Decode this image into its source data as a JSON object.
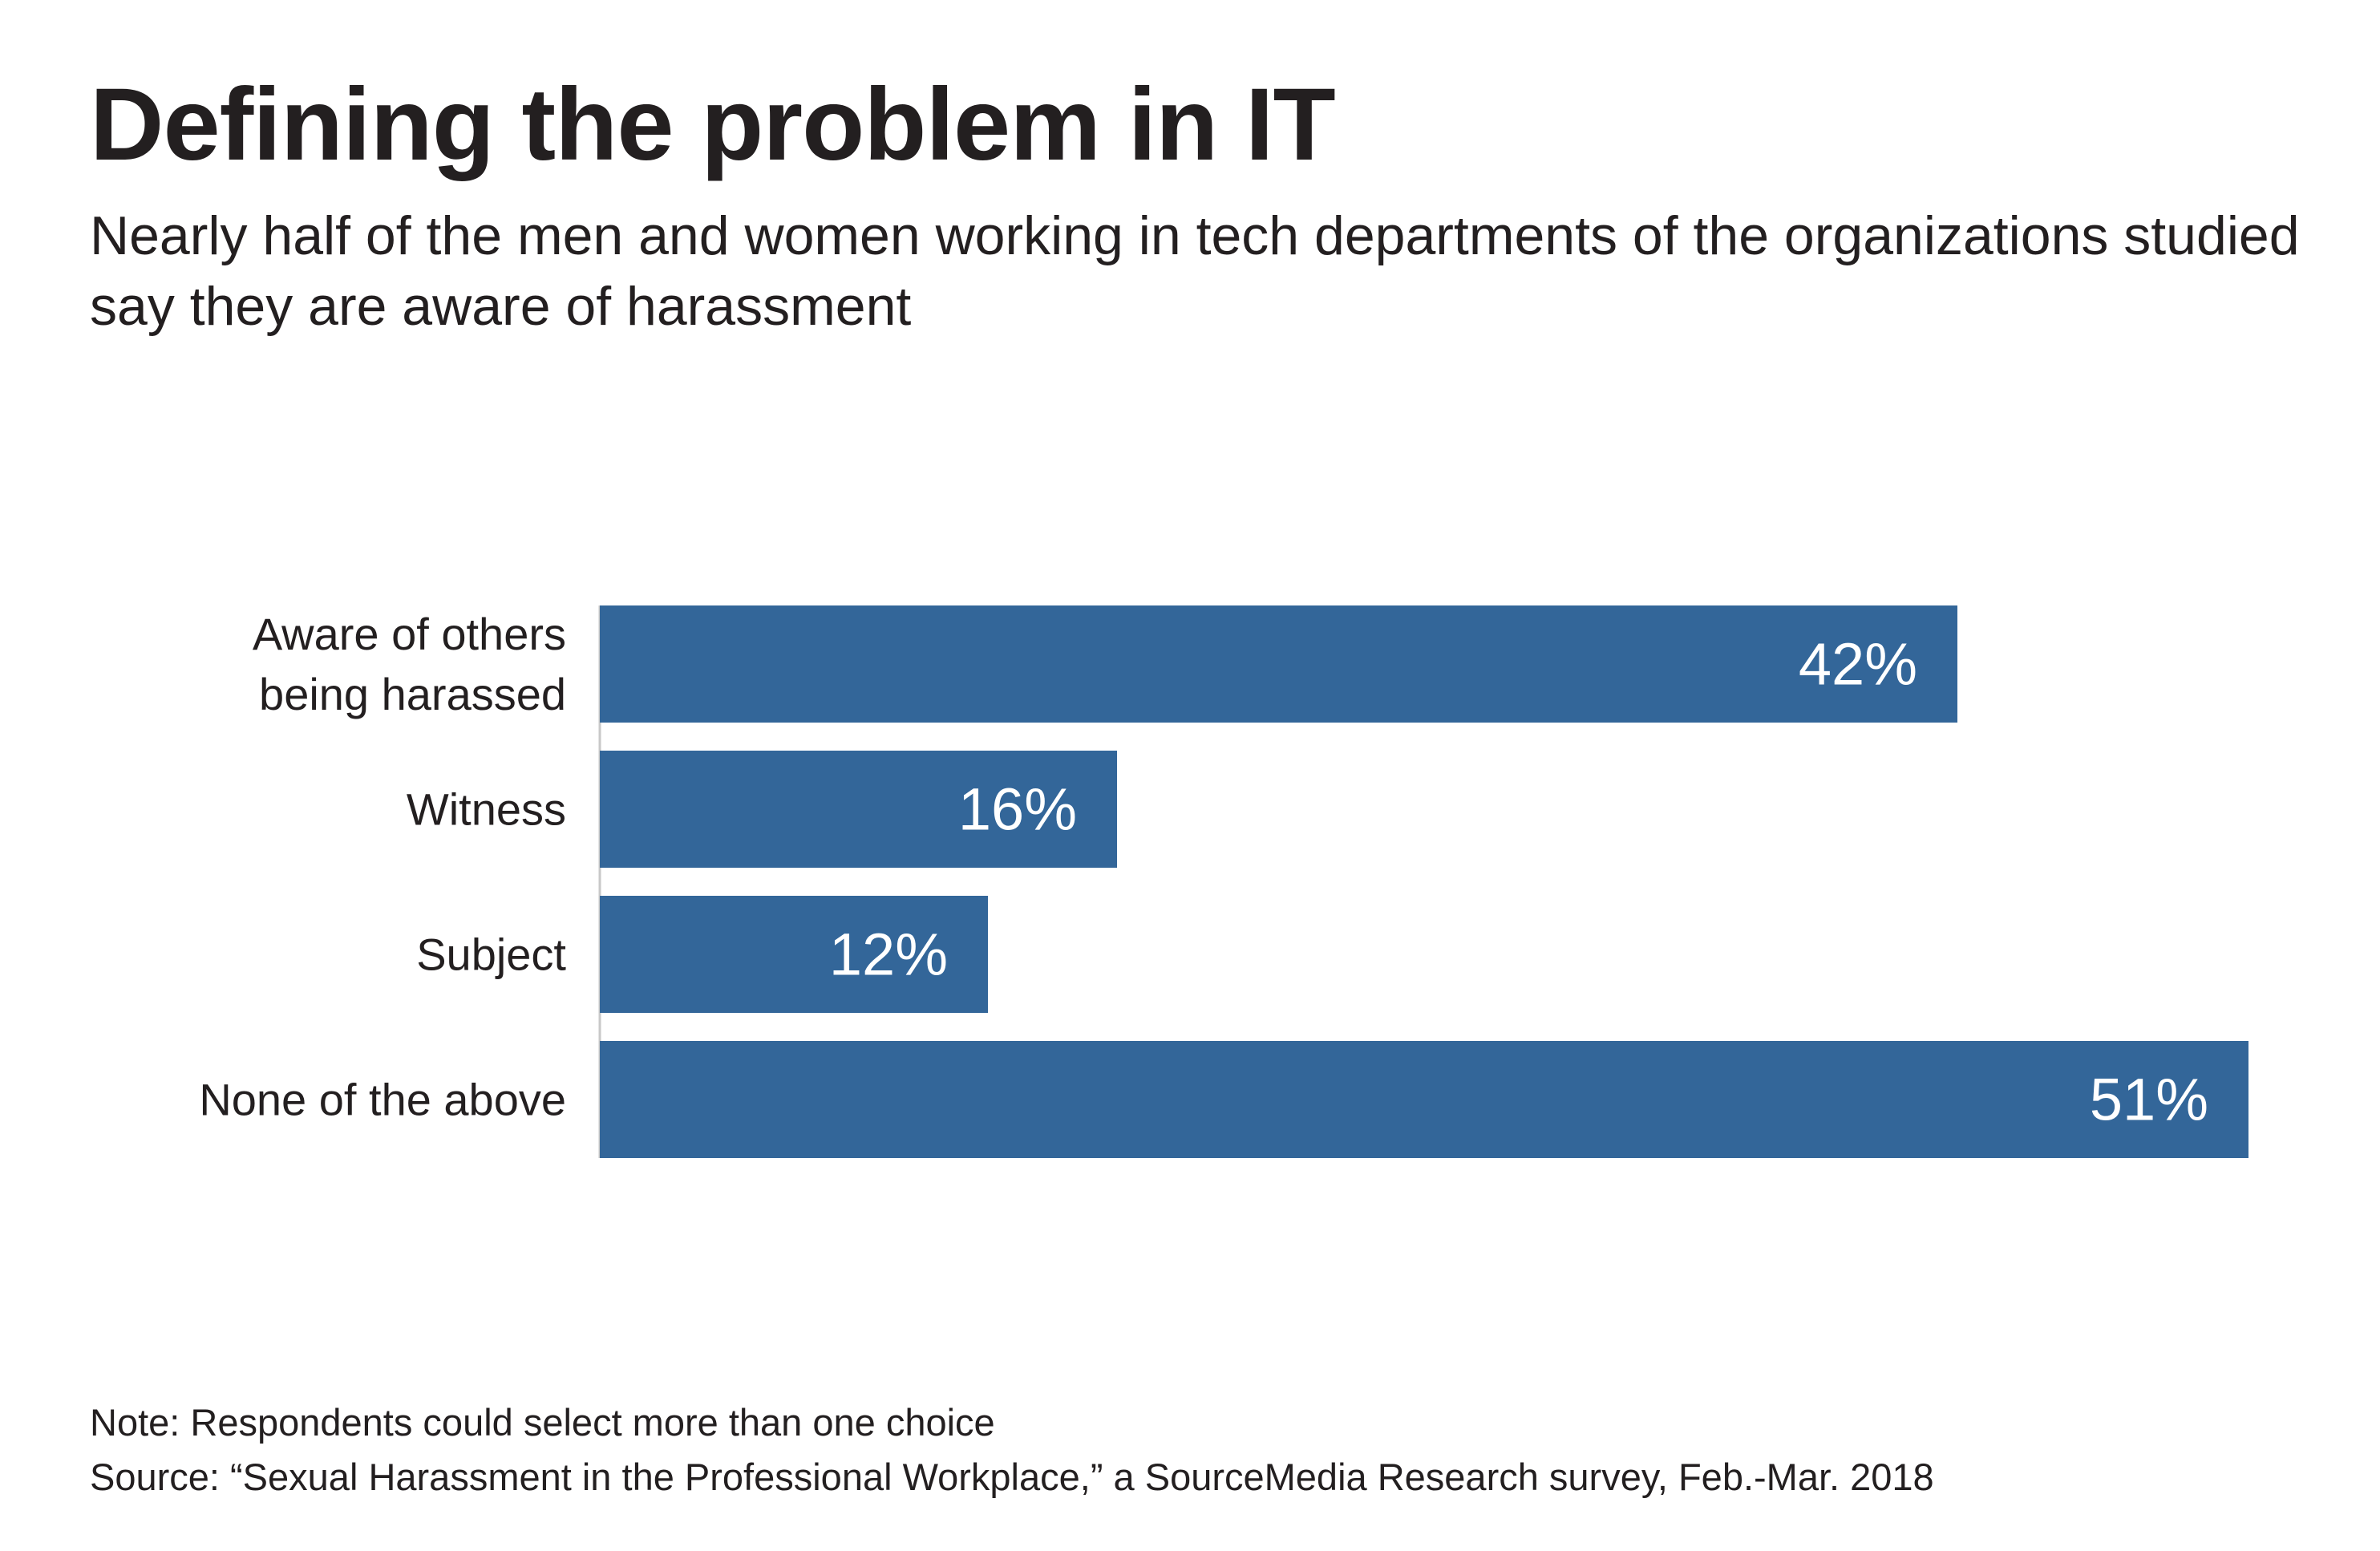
{
  "title": "Defining the problem in IT",
  "subtitle": "Nearly half of the men and women working in tech departments of the organizations studied say they are aware of harassment",
  "note": "Note:  Respondents could select more than one choice",
  "source": "Source: “Sexual Harassment in the Professional Workplace,” a SourceMedia Research survey, Feb.-Mar. 2018",
  "colors": {
    "bar": "#336699",
    "bar_label": "#ffffff",
    "text": "#231f20",
    "axis": "#c8c8c8"
  },
  "chart_data": {
    "type": "bar",
    "orientation": "horizontal",
    "title": "Defining the problem in IT",
    "subtitle": "Nearly half of the men and women working in tech departments of the organizations studied say they are aware of harassment",
    "xlabel": "",
    "ylabel": "",
    "xlim": [
      0,
      51
    ],
    "grid": false,
    "legend": "none",
    "unit": "%",
    "categories": [
      [
        "Aware of others",
        "being harassed"
      ],
      [
        "Witness"
      ],
      [
        "Subject"
      ],
      [
        "None of the above"
      ]
    ],
    "values": [
      42,
      16,
      12,
      51
    ],
    "value_labels": [
      "42%",
      "16%",
      "12%",
      "51%"
    ]
  }
}
